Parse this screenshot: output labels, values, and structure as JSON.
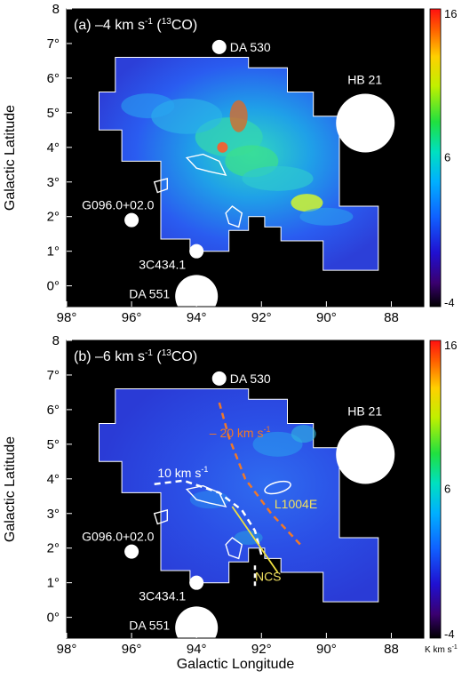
{
  "chart_data": [
    {
      "type": "heatmap",
      "panel_label": "(a) –4 km s",
      "panel_label_sup": "-1",
      "panel_label_tail": " (",
      "panel_label_iso": "13",
      "panel_label_end": "CO)",
      "xlabel": "",
      "ylabel": "Galactic Latitude",
      "xlim": [
        98,
        87
      ],
      "ylim": [
        -0.6,
        8
      ],
      "xticks": [
        98,
        96,
        94,
        92,
        90,
        88
      ],
      "xtick_labels": [
        "98°",
        "96°",
        "94°",
        "92°",
        "90°",
        "88"
      ],
      "yticks": [
        0,
        1,
        2,
        3,
        4,
        5,
        6,
        7,
        8
      ],
      "ytick_labels": [
        "0°",
        "1°",
        "2°",
        "3°",
        "4°",
        "5°",
        "6°",
        "7°",
        "8"
      ],
      "colorbar": {
        "min": -4,
        "max": 16,
        "ticks": [
          "16",
          "6",
          "-4"
        ],
        "unit": ""
      },
      "sources": [
        {
          "name": "DA 530",
          "l": 93.3,
          "b": 6.9
        },
        {
          "name": "HB 21",
          "l": 88.8,
          "b": 4.7
        },
        {
          "name": "G096.0+02.0",
          "l": 96.0,
          "b": 1.9
        },
        {
          "name": "3C434.1",
          "l": 94.0,
          "b": 1.0
        },
        {
          "name": "DA 551",
          "l": 94.0,
          "b": -0.3
        }
      ]
    },
    {
      "type": "heatmap",
      "panel_label": "(b) –6 km s",
      "panel_label_sup": "-1",
      "panel_label_tail": " (",
      "panel_label_iso": "13",
      "panel_label_end": "CO)",
      "xlabel": "Galactic Longitude",
      "ylabel": "Galactic Latitude",
      "xlim": [
        98,
        87
      ],
      "ylim": [
        -0.6,
        8
      ],
      "xticks": [
        98,
        96,
        94,
        92,
        90,
        88
      ],
      "xtick_labels": [
        "98°",
        "96°",
        "94°",
        "92°",
        "90°",
        "88"
      ],
      "yticks": [
        0,
        1,
        2,
        3,
        4,
        5,
        6,
        7,
        8
      ],
      "ytick_labels": [
        "0°",
        "1°",
        "2°",
        "3°",
        "4°",
        "5°",
        "6°",
        "7°",
        "8"
      ],
      "colorbar": {
        "min": -4,
        "max": 16,
        "ticks": [
          "16",
          "6",
          "-4"
        ],
        "unit": "K km s"
      },
      "colorbar_unit_sup": "-1",
      "sources": [
        {
          "name": "DA 530",
          "l": 93.3,
          "b": 6.9
        },
        {
          "name": "HB 21",
          "l": 88.8,
          "b": 4.7
        },
        {
          "name": "G096.0+02.0",
          "l": 96.0,
          "b": 1.9
        },
        {
          "name": "3C434.1",
          "l": 94.0,
          "b": 1.0
        },
        {
          "name": "DA 551",
          "l": 94.0,
          "b": -0.3
        }
      ],
      "annotations": {
        "arc_red": "– 20 km s",
        "arc_red_sup": "-1",
        "arc_white": "10 km s",
        "arc_white_sup": "-1",
        "l1004e": "L1004E",
        "ncs": "NCS"
      }
    }
  ]
}
